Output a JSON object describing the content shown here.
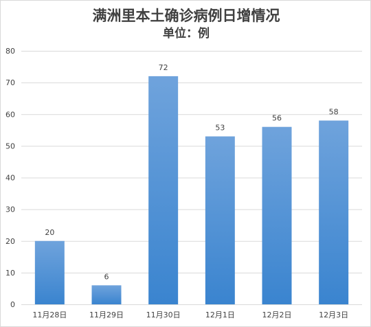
{
  "chart_data": {
    "type": "bar",
    "title": "满洲里本土确诊病例日增情况",
    "subtitle": "单位：例",
    "categories": [
      "11月28日",
      "11月29日",
      "11月30日",
      "12月1日",
      "12月2日",
      "12月3日"
    ],
    "values": [
      20,
      6,
      72,
      53,
      56,
      58
    ],
    "ylim": [
      0,
      80
    ],
    "yticks": [
      0,
      10,
      20,
      30,
      40,
      50,
      60,
      70,
      80
    ],
    "grid": true,
    "legend": "none",
    "colors": {
      "bar_top": "#6fa3dc",
      "bar_bottom": "#3a84cf",
      "grid": "#d9d9d9",
      "text": "#404040"
    }
  }
}
